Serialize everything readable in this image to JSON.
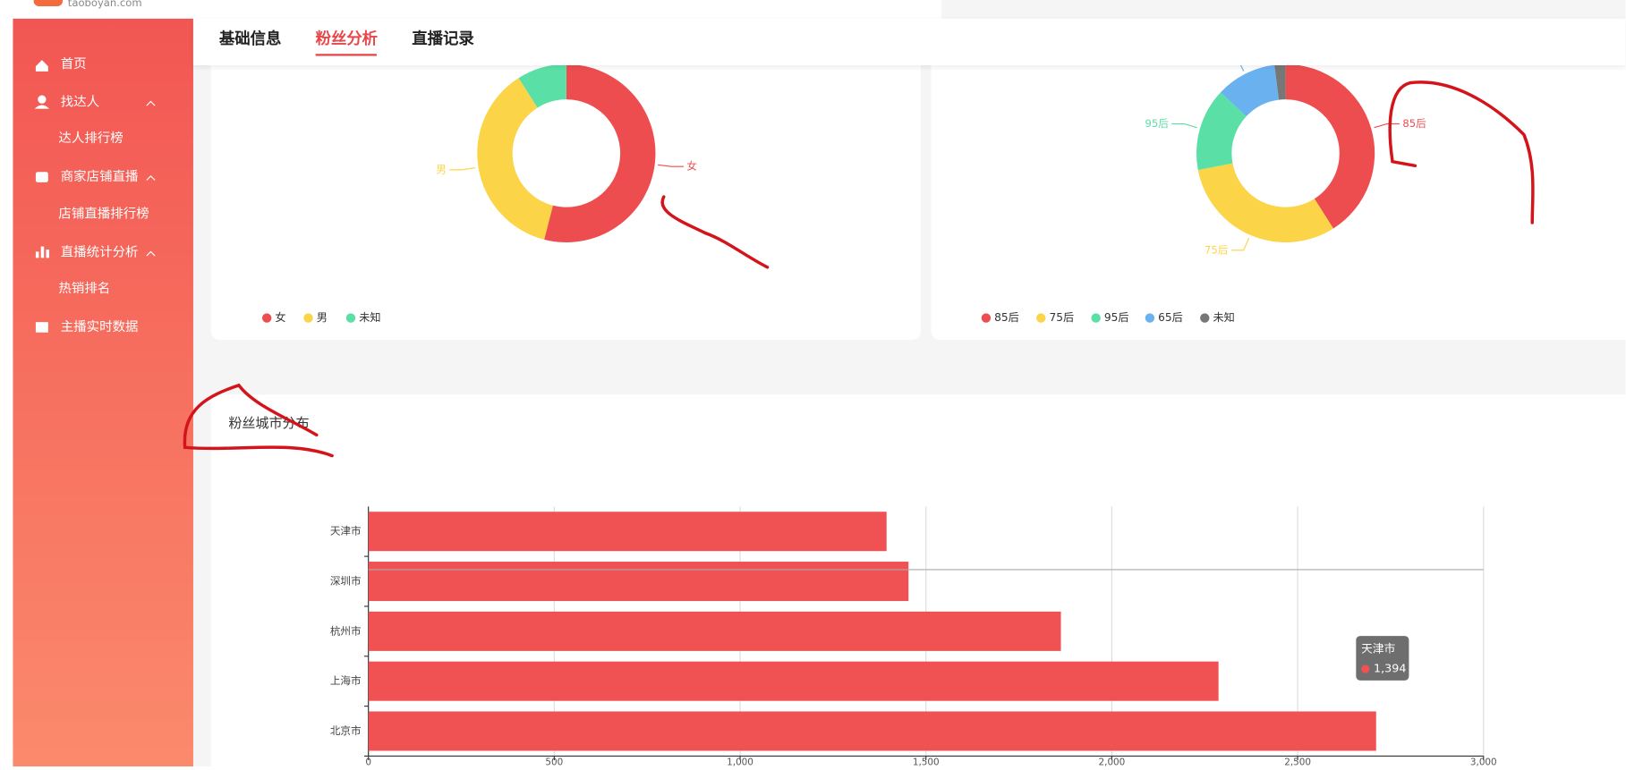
{
  "header": {
    "logo": "taoboyan.com"
  },
  "sidebar": {
    "items": [
      "首页",
      "找达人",
      "达人排行榜",
      "商家店铺直播",
      "店铺直播排行榜",
      "直播统计分析",
      "热销排名",
      "主播实时数据"
    ]
  },
  "tabs": [
    "基础信息",
    "粉丝分析",
    "直播记录"
  ],
  "active_tab": 1,
  "charts": [
    {
      "type": "pie",
      "categories": [
        "女",
        "男",
        "未知"
      ],
      "values": [
        54,
        37,
        9
      ],
      "colors": [
        "#ee4d50",
        "#fcd447",
        "#5ae0a6"
      ]
    },
    {
      "type": "pie",
      "categories": [
        "85后",
        "75后",
        "95后",
        "65后",
        "未知"
      ],
      "values": [
        41,
        31,
        15,
        11,
        2
      ],
      "colors": [
        "#ee4d50",
        "#fcd447",
        "#5ae0a6",
        "#6ab1f0",
        "#777777"
      ]
    },
    {
      "type": "bar",
      "orientation": "horizontal",
      "title": "粉丝城市分布",
      "categories": [
        "北京市",
        "上海市",
        "杭州市",
        "深圳市",
        "天津市"
      ],
      "values": [
        2711,
        2287,
        1863,
        1453,
        1394
      ],
      "color": "#f05152",
      "xlim": [
        0,
        3000
      ],
      "xticks": [
        0,
        500,
        {
          "value": 1000,
          "label": "1,000"
        },
        {
          "value": 1500,
          "label": "1,500"
        },
        {
          "value": 2000,
          "label": "2,000"
        },
        {
          "value": 2500,
          "label": "2,500"
        },
        {
          "value": 3000,
          "label": "3,000"
        }
      ],
      "grid": true,
      "tooltip": {
        "category": "天津市",
        "value": 1394,
        "value_label": "1,394"
      }
    }
  ]
}
